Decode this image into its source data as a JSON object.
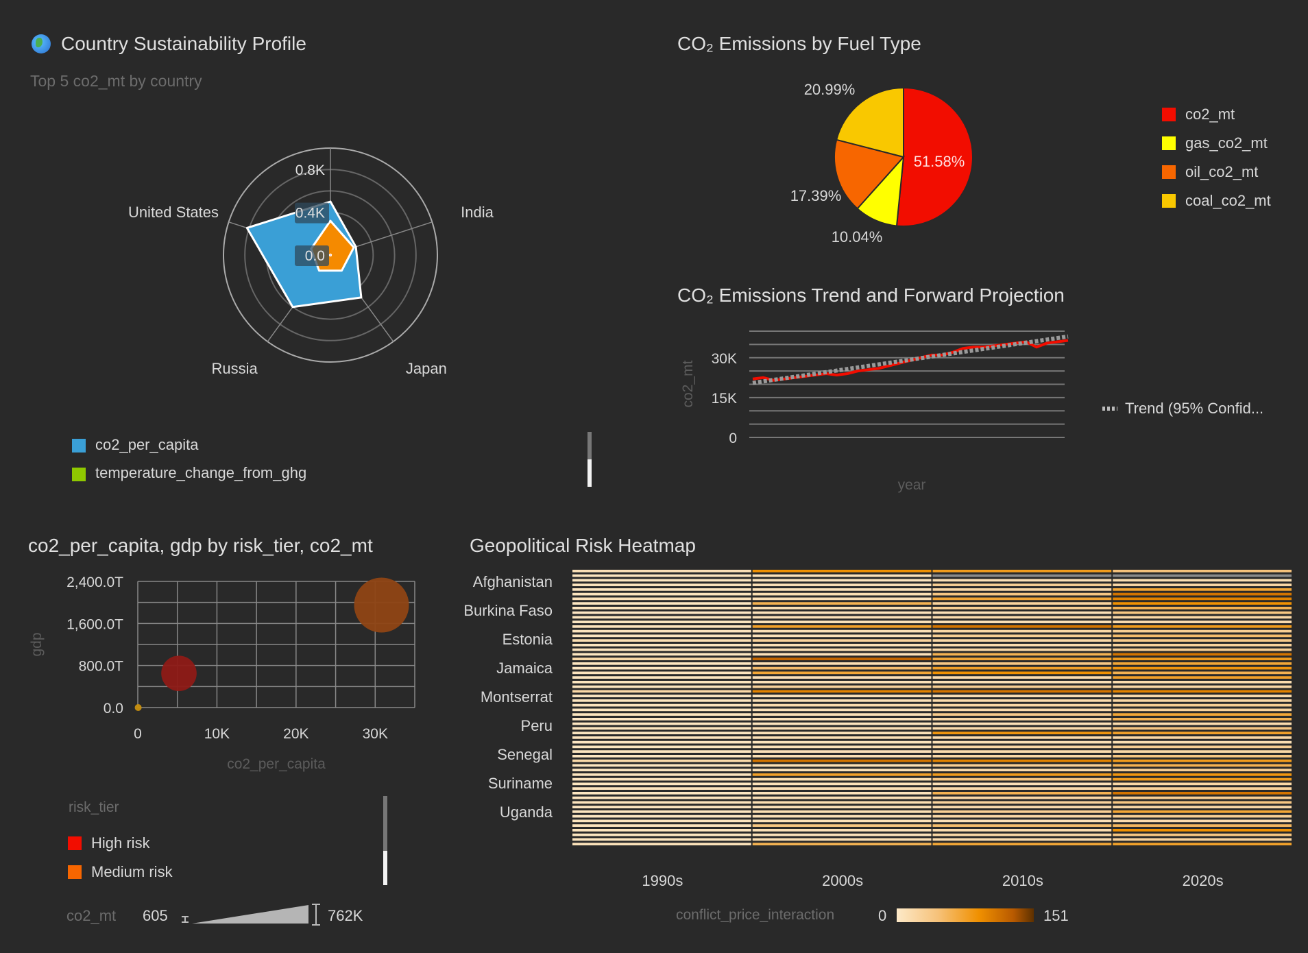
{
  "radar_panel": {
    "icon": "globe-icon",
    "title": "Country Sustainability Profile",
    "subtitle": "Top 5 co2_mt by country",
    "legend": [
      {
        "label": "co2_per_capita",
        "color": "#3a9fd6"
      },
      {
        "label": "temperature_change_from_ghg",
        "color": "#8fc800"
      }
    ]
  },
  "pie_panel": {
    "title": "CO₂ Emissions by Fuel Type"
  },
  "line_panel": {
    "title": "CO₂ Emissions Trend and Forward Projection",
    "legend_trend": "Trend (95% Confid..."
  },
  "scatter_panel": {
    "title": "co2_per_capita, gdp by risk_tier, co2_mt",
    "legend_title": "risk_tier",
    "legend": [
      {
        "label": "High risk",
        "color": "#f20d00"
      },
      {
        "label": "Medium risk",
        "color": "#f76600"
      }
    ],
    "size_legend": {
      "title": "co2_mt",
      "min": "605",
      "max": "762K"
    }
  },
  "heatmap_panel": {
    "title": "Geopolitical Risk Heatmap",
    "legend_title": "conflict_price_interaction",
    "legend_min": "0",
    "legend_max": "151"
  },
  "chart_data": [
    {
      "type": "radar",
      "axes": [
        "",
        "India",
        "Japan",
        "Russia",
        "United States"
      ],
      "tick_labels": [
        "0.0",
        "0.4K",
        "0.8K"
      ],
      "rlim": [
        0,
        1000
      ],
      "series": [
        {
          "name": "co2_per_capita",
          "color": "#3a9fd6",
          "values": [
            500,
            250,
            490,
            600,
            820
          ]
        },
        {
          "color": "#f58a00",
          "values": [
            320,
            230,
            180,
            180,
            190
          ]
        },
        {
          "name": "temperature_change_from_ghg",
          "color": "#e0304a",
          "values": [
            10,
            10,
            10,
            10,
            10
          ]
        }
      ]
    },
    {
      "type": "pie",
      "slices": [
        {
          "label": "co2_mt",
          "value": 51.58,
          "text": "51.58%",
          "color": "#f20d00"
        },
        {
          "label": "gas_co2_mt",
          "value": 10.04,
          "text": "10.04%",
          "color": "#ffff00"
        },
        {
          "label": "oil_co2_mt",
          "value": 17.39,
          "text": "17.39%",
          "color": "#f76600"
        },
        {
          "label": "coal_co2_mt",
          "value": 20.99,
          "text": "20.99%",
          "color": "#f9c800"
        }
      ],
      "legend": "right"
    },
    {
      "type": "line",
      "xlabel": "year",
      "ylabel": "co2_mt",
      "ylim": [
        0,
        40000
      ],
      "yticks": [
        {
          "v": 0,
          "t": "0"
        },
        {
          "v": 15000,
          "t": "15K"
        },
        {
          "v": 30000,
          "t": "30K"
        }
      ],
      "grid": true,
      "series": [
        {
          "color": "#f20d00",
          "values": [
            22000,
            22500,
            21500,
            22000,
            22500,
            23000,
            23500,
            24000,
            23500,
            24000,
            25000,
            25500,
            26000,
            27000,
            28000,
            29000,
            30000,
            31000,
            31000,
            32000,
            33500,
            34000,
            34000,
            34500,
            35000,
            35500,
            36000,
            34000,
            35500,
            36000,
            36500
          ]
        },
        {
          "name": "Trend (95% Confid...",
          "color": "#9a9a9a",
          "dash": true,
          "values": [
            20500,
            38000
          ]
        }
      ]
    },
    {
      "type": "scatter",
      "xlabel": "co2_per_capita",
      "ylabel": "gdp",
      "xlim": [
        0,
        35000
      ],
      "ylim": [
        0,
        2400
      ],
      "xticks": [
        {
          "v": 0,
          "t": "0"
        },
        {
          "v": 10000,
          "t": "10K"
        },
        {
          "v": 20000,
          "t": "20K"
        },
        {
          "v": 30000,
          "t": "30K"
        }
      ],
      "yticks": [
        {
          "v": 0,
          "t": "0.0"
        },
        {
          "v": 800,
          "t": "800.0T"
        },
        {
          "v": 1600,
          "t": "1,600.0T"
        },
        {
          "v": 2400,
          "t": "2,400.0T"
        }
      ],
      "grid": true,
      "points": [
        {
          "risk_tier": "High risk",
          "x": 5200,
          "y": 650,
          "co2_mt": 280000,
          "color": "#8e1a16"
        },
        {
          "risk_tier": "Medium risk",
          "x": 30800,
          "y": 1950,
          "co2_mt": 762000,
          "color": "#8f4414"
        },
        {
          "x": 50,
          "y": 0,
          "co2_mt": 605,
          "color": "#c8900f"
        }
      ]
    },
    {
      "type": "heatmap",
      "columns": [
        "1990s",
        "2000s",
        "2010s",
        "2020s"
      ],
      "row_labels": [
        "Afghanistan",
        "Burkina Faso",
        "Estonia",
        "Jamaica",
        "Montserrat",
        "Peru",
        "Senegal",
        "Suriname",
        "Uganda"
      ],
      "range": [
        0,
        151
      ],
      "values": [
        [
          10,
          90,
          80,
          45
        ],
        [
          5,
          8,
          null,
          null
        ],
        [
          4,
          6,
          10,
          12
        ],
        [
          6,
          10,
          30,
          20
        ],
        [
          5,
          8,
          20,
          70
        ],
        [
          6,
          12,
          40,
          110
        ],
        [
          8,
          10,
          70,
          100
        ],
        [
          4,
          60,
          25,
          90
        ],
        [
          5,
          12,
          30,
          60
        ],
        [
          3,
          8,
          10,
          40
        ],
        [
          5,
          10,
          15,
          20
        ],
        [
          4,
          8,
          10,
          15
        ],
        [
          6,
          75,
          110,
          80
        ],
        [
          5,
          10,
          20,
          30
        ],
        [
          4,
          8,
          30,
          50
        ],
        [
          12,
          25,
          20,
          35
        ],
        [
          5,
          10,
          15,
          25
        ],
        [
          6,
          12,
          20,
          30
        ],
        [
          4,
          8,
          60,
          110
        ],
        [
          18,
          120,
          70,
          80
        ],
        [
          5,
          12,
          40,
          70
        ],
        [
          4,
          50,
          75,
          85
        ],
        [
          6,
          70,
          90,
          60
        ],
        [
          4,
          10,
          15,
          75
        ],
        [
          5,
          8,
          10,
          15
        ],
        [
          5,
          25,
          30,
          20
        ],
        [
          20,
          100,
          110,
          100
        ],
        [
          4,
          8,
          10,
          15
        ],
        [
          5,
          10,
          15,
          20
        ],
        [
          6,
          15,
          20,
          30
        ],
        [
          4,
          8,
          15,
          25
        ],
        [
          5,
          10,
          35,
          70
        ],
        [
          3,
          8,
          20,
          60
        ],
        [
          4,
          6,
          10,
          15
        ],
        [
          5,
          10,
          15,
          40
        ],
        [
          4,
          8,
          85,
          75
        ],
        [
          5,
          10,
          15,
          20
        ],
        [
          3,
          6,
          10,
          12
        ],
        [
          4,
          8,
          20,
          30
        ],
        [
          5,
          10,
          15,
          20
        ],
        [
          4,
          12,
          20,
          40
        ],
        [
          18,
          110,
          100,
          80
        ],
        [
          5,
          12,
          30,
          60
        ],
        [
          4,
          8,
          15,
          30
        ],
        [
          5,
          75,
          80,
          85
        ],
        [
          6,
          12,
          40,
          80
        ],
        [
          4,
          8,
          10,
          20
        ],
        [
          5,
          10,
          15,
          25
        ],
        [
          4,
          8,
          60,
          110
        ],
        [
          5,
          10,
          20,
          30
        ],
        [
          6,
          12,
          25,
          40
        ],
        [
          4,
          8,
          15,
          20
        ],
        [
          5,
          12,
          30,
          70
        ],
        [
          4,
          10,
          20,
          30
        ],
        [
          5,
          8,
          10,
          15
        ],
        [
          6,
          40,
          50,
          55
        ],
        [
          5,
          10,
          15,
          90
        ],
        [
          4,
          8,
          20,
          40
        ],
        [
          5,
          12,
          15,
          25
        ],
        [
          8,
          60,
          70,
          75
        ]
      ]
    }
  ]
}
